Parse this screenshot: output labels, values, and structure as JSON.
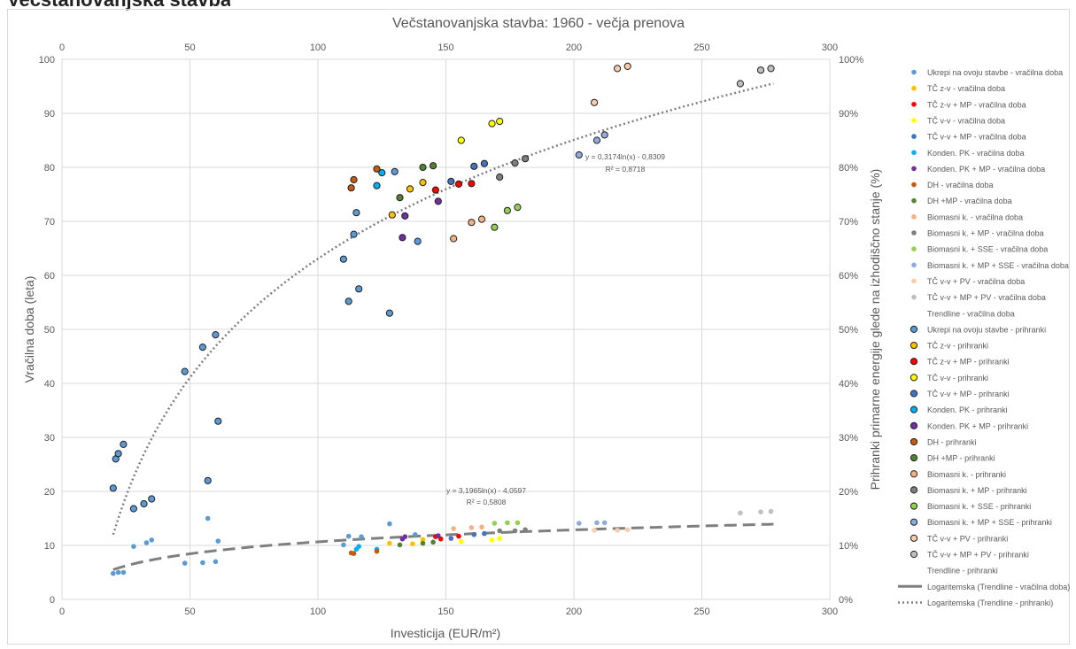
{
  "header_fragment": "Večstanovanjska stavba",
  "chart_data": {
    "type": "scatter",
    "title": "Večstanovanjska stavba: 1960 - večja prenova",
    "xlabel": "Investicija (EUR/m²)",
    "ylabel_left": "Vračilna doba (leta)",
    "ylabel_right": "Prihranki primarne energije glede na izhodiščno stanje (%)",
    "xlim": [
      0,
      300
    ],
    "ylim_left": [
      0,
      100
    ],
    "ylim_right": [
      0,
      1
    ],
    "x_ticks": [
      "0",
      "50",
      "100",
      "150",
      "200",
      "250",
      "300"
    ],
    "y_left_ticks": [
      "0",
      "10",
      "20",
      "30",
      "40",
      "50",
      "60",
      "70",
      "80",
      "90",
      "100"
    ],
    "y_right_ticks": [
      "0%",
      "10%",
      "20%",
      "30%",
      "40%",
      "50%",
      "60%",
      "70%",
      "80%",
      "90%",
      "100%"
    ],
    "grid": true,
    "legend_position": "right",
    "trendlines": [
      {
        "name": "Logaritemska (Trendline - vračilna doba)",
        "a": 3.1965,
        "b": -4.0597,
        "axis": "left",
        "style": "dashed",
        "color": "#7f7f7f",
        "equation": "y = 3,1965ln(x) - 4,0597",
        "r2": "R² = 0,5808"
      },
      {
        "name": "Logaritemska (Trendline - prihranki)",
        "a": 0.3174,
        "b": -0.8309,
        "axis": "right",
        "style": "dotted",
        "color": "#7f7f7f",
        "equation": "y = 0,3174ln(x) - 0,8309",
        "r2": "R² = 0,8718"
      }
    ],
    "series": [
      {
        "name": "Ukrepi na ovoju stavbe - vračilna doba",
        "color": "#5b9bd5",
        "outline": false,
        "axis": "left",
        "points": [
          [
            20,
            4.8
          ],
          [
            22,
            5
          ],
          [
            24,
            5
          ],
          [
            28,
            9.8
          ],
          [
            33,
            10.5
          ],
          [
            35,
            11
          ],
          [
            48,
            6.7
          ],
          [
            55,
            6.8
          ],
          [
            57,
            15
          ],
          [
            60,
            7
          ],
          [
            61,
            10.8
          ],
          [
            110,
            10.1
          ],
          [
            112,
            11.7
          ],
          [
            117,
            11.6
          ],
          [
            128,
            14
          ],
          [
            138,
            12
          ]
        ]
      },
      {
        "name": "TČ z-v - vračilna doba",
        "color": "#ffc000",
        "outline": false,
        "axis": "left",
        "points": [
          [
            128,
            10.4
          ],
          [
            137,
            10.3
          ],
          [
            141,
            11.1
          ]
        ]
      },
      {
        "name": "TČ z-v + MP - vračilna doba",
        "color": "#ff0000",
        "outline": false,
        "axis": "left",
        "points": [
          [
            146,
            11.6
          ],
          [
            148,
            11.2
          ],
          [
            155,
            11.7
          ]
        ]
      },
      {
        "name": "TČ v-v - vračilna doba",
        "color": "#ffff00",
        "outline": false,
        "axis": "left",
        "points": [
          [
            156,
            10.7
          ],
          [
            168,
            11
          ],
          [
            171,
            11.3
          ]
        ]
      },
      {
        "name": "TČ v-v + MP - vračilna doba",
        "color": "#4472c4",
        "outline": false,
        "axis": "left",
        "points": [
          [
            152,
            11.3
          ],
          [
            161,
            12
          ],
          [
            165,
            12.2
          ]
        ]
      },
      {
        "name": "Konden. PK - vračilna doba",
        "color": "#00b0f0",
        "outline": false,
        "axis": "left",
        "points": [
          [
            115,
            9.3
          ],
          [
            116,
            9.8
          ],
          [
            123,
            9.3
          ]
        ]
      },
      {
        "name": "Konden. PK + MP - vračilna doba",
        "color": "#7030a0",
        "outline": false,
        "axis": "left",
        "points": [
          [
            133,
            11.2
          ],
          [
            134,
            11.6
          ],
          [
            147,
            11.8
          ]
        ]
      },
      {
        "name": "DH - vračilna doba",
        "color": "#c55a11",
        "outline": false,
        "axis": "left",
        "points": [
          [
            113,
            8.6
          ],
          [
            114,
            8.5
          ],
          [
            123,
            8.9
          ]
        ]
      },
      {
        "name": "DH +MP - vračilna doba",
        "color": "#548235",
        "outline": false,
        "axis": "left",
        "points": [
          [
            132,
            10.1
          ],
          [
            141,
            10.4
          ],
          [
            145,
            10.6
          ]
        ]
      },
      {
        "name": "Biomasni k. - vračilna doba",
        "color": "#f4b183",
        "outline": false,
        "axis": "left",
        "points": [
          [
            153,
            13.1
          ],
          [
            160,
            13.3
          ],
          [
            164,
            13.4
          ]
        ]
      },
      {
        "name": "Biomasni k. + MP - vračilna doba",
        "color": "#7f7f7f",
        "outline": false,
        "axis": "left",
        "points": [
          [
            171,
            12.7
          ],
          [
            177,
            12.7
          ],
          [
            181,
            12.9
          ]
        ]
      },
      {
        "name": "Biomasni k. + SSE - vračilna doba",
        "color": "#92d050",
        "outline": false,
        "axis": "left",
        "points": [
          [
            169,
            14.1
          ],
          [
            174,
            14.2
          ],
          [
            178,
            14.2
          ]
        ]
      },
      {
        "name": "Biomasni k. + MP + SSE - vračilna doba",
        "color": "#8faadc",
        "outline": false,
        "axis": "left",
        "points": [
          [
            202,
            14.1
          ],
          [
            209,
            14.2
          ],
          [
            212,
            14.2
          ]
        ]
      },
      {
        "name": "TČ v-v + PV - vračilna doba",
        "color": "#f8cbad",
        "outline": false,
        "axis": "left",
        "points": [
          [
            208,
            12.8
          ],
          [
            217,
            12.8
          ],
          [
            221,
            12.9
          ]
        ]
      },
      {
        "name": "TČ v-v + MP + PV - vračilna doba",
        "color": "#bfbfbf",
        "outline": false,
        "axis": "left",
        "points": [
          [
            265,
            16
          ],
          [
            273,
            16.2
          ],
          [
            277,
            16.3
          ]
        ]
      },
      {
        "name": "Ukrepi na ovoju stavbe - prihranki",
        "color": "#5b9bd5",
        "outline": true,
        "axis": "right",
        "points": [
          [
            20,
            0.206
          ],
          [
            21,
            0.26
          ],
          [
            22,
            0.27
          ],
          [
            24,
            0.287
          ],
          [
            28,
            0.168
          ],
          [
            32,
            0.177
          ],
          [
            35,
            0.186
          ],
          [
            48,
            0.422
          ],
          [
            55,
            0.467
          ],
          [
            57,
            0.22
          ],
          [
            60,
            0.49
          ],
          [
            61,
            0.33
          ],
          [
            110,
            0.63
          ],
          [
            112,
            0.552
          ],
          [
            114,
            0.676
          ],
          [
            115,
            0.716
          ],
          [
            116,
            0.575
          ],
          [
            128,
            0.53
          ],
          [
            130,
            0.792
          ],
          [
            139,
            0.663
          ]
        ]
      },
      {
        "name": "TČ z-v - prihranki",
        "color": "#ffc000",
        "outline": true,
        "axis": "right",
        "points": [
          [
            129,
            0.712
          ],
          [
            136,
            0.76
          ],
          [
            141,
            0.772
          ]
        ]
      },
      {
        "name": "TČ z-v + MP - prihranki",
        "color": "#ff0000",
        "outline": true,
        "axis": "right",
        "points": [
          [
            146,
            0.758
          ],
          [
            155,
            0.769
          ],
          [
            160,
            0.77
          ]
        ]
      },
      {
        "name": "TČ v-v - prihranki",
        "color": "#ffff00",
        "outline": true,
        "axis": "right",
        "points": [
          [
            156,
            0.85
          ],
          [
            168,
            0.881
          ],
          [
            171,
            0.885
          ]
        ]
      },
      {
        "name": "TČ v-v + MP - prihranki",
        "color": "#4472c4",
        "outline": true,
        "axis": "right",
        "points": [
          [
            152,
            0.774
          ],
          [
            161,
            0.802
          ],
          [
            165,
            0.807
          ]
        ]
      },
      {
        "name": "Konden. PK - prihranki",
        "color": "#00b0f0",
        "outline": true,
        "axis": "right",
        "points": [
          [
            123,
            0.766
          ],
          [
            125,
            0.79
          ]
        ]
      },
      {
        "name": "Konden. PK + MP - prihranki",
        "color": "#7030a0",
        "outline": true,
        "axis": "right",
        "points": [
          [
            133,
            0.67
          ],
          [
            134,
            0.71
          ],
          [
            147,
            0.737
          ]
        ]
      },
      {
        "name": "DH - prihranki",
        "color": "#c55a11",
        "outline": true,
        "axis": "right",
        "points": [
          [
            113,
            0.762
          ],
          [
            114,
            0.777
          ],
          [
            123,
            0.797
          ]
        ]
      },
      {
        "name": "DH +MP - prihranki",
        "color": "#548235",
        "outline": true,
        "axis": "right",
        "points": [
          [
            132,
            0.744
          ],
          [
            141,
            0.8
          ],
          [
            145,
            0.803
          ]
        ]
      },
      {
        "name": "Biomasni k. - prihranki",
        "color": "#f4b183",
        "outline": true,
        "axis": "right",
        "points": [
          [
            153,
            0.668
          ],
          [
            160,
            0.698
          ],
          [
            164,
            0.704
          ]
        ]
      },
      {
        "name": "Biomasni k. + MP - prihranki",
        "color": "#7f7f7f",
        "outline": true,
        "axis": "right",
        "points": [
          [
            171,
            0.782
          ],
          [
            177,
            0.808
          ],
          [
            181,
            0.816
          ]
        ]
      },
      {
        "name": "Biomasni k. + SSE - prihranki",
        "color": "#92d050",
        "outline": true,
        "axis": "right",
        "points": [
          [
            169,
            0.689
          ],
          [
            174,
            0.72
          ],
          [
            178,
            0.726
          ]
        ]
      },
      {
        "name": "Biomasni k. + MP + SSE - prihranki",
        "color": "#8faadc",
        "outline": true,
        "axis": "right",
        "points": [
          [
            202,
            0.823
          ],
          [
            209,
            0.85
          ],
          [
            212,
            0.86
          ]
        ]
      },
      {
        "name": "TČ v-v + PV - prihranki",
        "color": "#f8cbad",
        "outline": true,
        "axis": "right",
        "points": [
          [
            208,
            0.92
          ],
          [
            217,
            0.983
          ],
          [
            221,
            0.987
          ]
        ]
      },
      {
        "name": "TČ v-v + MP + PV - prihranki",
        "color": "#bfbfbf",
        "outline": true,
        "axis": "right",
        "points": [
          [
            265,
            0.955
          ],
          [
            273,
            0.98
          ],
          [
            277,
            0.983
          ]
        ]
      }
    ],
    "legend_labels": [
      "Ukrepi na ovoju stavbe - vračilna doba",
      "TČ z-v - vračilna doba",
      "TČ z-v + MP - vračilna doba",
      "TČ v-v - vračilna doba",
      "TČ v-v + MP - vračilna doba",
      "Konden. PK - vračilna doba",
      "Konden. PK + MP - vračilna doba",
      "DH - vračilna doba",
      "DH +MP - vračilna doba",
      "Biomasni k. - vračilna doba",
      "Biomasni k. + MP - vračilna doba",
      "Biomasni k. + SSE - vračilna doba",
      "Biomasni k. + MP + SSE - vračilna doba",
      "TČ v-v + PV - vračilna doba",
      "TČ v-v + MP + PV - vračilna doba",
      "Trendline - vračilna doba",
      "Ukrepi na ovoju stavbe - prihranki",
      "TČ z-v - prihranki",
      "TČ z-v + MP - prihranki",
      "TČ v-v - prihranki",
      "TČ v-v + MP - prihranki",
      "Konden. PK - prihranki",
      "Konden. PK + MP - prihranki",
      "DH - prihranki",
      "DH +MP - prihranki",
      "Biomasni k. - prihranki",
      "Biomasni k. + MP - prihranki",
      "Biomasni k. + SSE - prihranki",
      "Biomasni k. + MP + SSE - prihranki",
      "TČ v-v + PV - prihranki",
      "TČ v-v + MP + PV - prihranki",
      "Trendline - prihranki",
      "Logaritemska (Trendline - vračilna doba)",
      "Logaritemska (Trendline - prihranki)"
    ]
  }
}
